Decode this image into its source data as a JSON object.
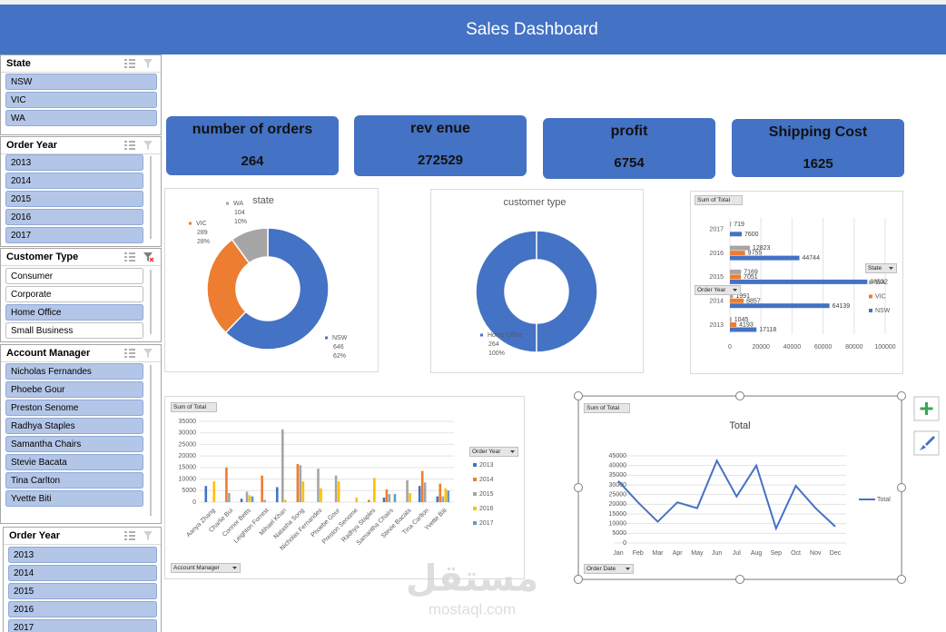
{
  "header": {
    "title": "Sales Dashboard"
  },
  "slicers": [
    {
      "title": "State",
      "items": [
        "NSW",
        "VIC",
        "WA"
      ]
    },
    {
      "title": "Order Year",
      "items": [
        "2013",
        "2014",
        "2015",
        "2016",
        "2017"
      ]
    },
    {
      "title": "Customer Type",
      "items": [
        "Consumer",
        "Corporate",
        "Home Office",
        "Small Business"
      ],
      "selected": [
        "Home Office"
      ]
    },
    {
      "title": "Account Manager",
      "items": [
        "Nicholas Fernandes",
        "Phoebe Gour",
        "Preston Senome",
        "Radhya Staples",
        "Samantha Chairs",
        "Stevie Bacata",
        "Tina Carlton",
        "Yvette Biti"
      ]
    },
    {
      "title": "Order Year",
      "items": [
        "2013",
        "2014",
        "2015",
        "2016",
        "2017"
      ]
    }
  ],
  "kpis": [
    {
      "label": "number of orders",
      "value": 264
    },
    {
      "label": "rev enue",
      "value": 272529
    },
    {
      "label": "profit",
      "value": 6754
    },
    {
      "label": "Shipping Cost",
      "value": 1625
    }
  ],
  "chart_data": [
    {
      "type": "donut",
      "title": "state",
      "categories": [
        "NSW",
        "VIC",
        "WA"
      ],
      "values": [
        646,
        289,
        104
      ],
      "percents": [
        {
          "value": 62,
          "label": "62%"
        },
        {
          "value": 28,
          "label": "28%"
        },
        {
          "value": 10,
          "label": "10%"
        }
      ],
      "colors": [
        "#4472c4",
        "#ed7d31",
        "#a5a5a5"
      ]
    },
    {
      "type": "donut",
      "title": "customer type",
      "categories": [
        "Home Office"
      ],
      "values": [
        264
      ],
      "percents": [
        {
          "value": 100,
          "label": "100%"
        }
      ],
      "colors": [
        "#4472c4"
      ]
    },
    {
      "type": "hbar",
      "value_field": "Sum of Total",
      "category_field": "Order Year",
      "legend_title": "State",
      "categories": [
        "2013",
        "2014",
        "2015",
        "2016",
        "2017"
      ],
      "series": [
        {
          "name": "NSW",
          "color": "#4472c4",
          "values": [
            17118,
            64139,
            88532,
            44744,
            7600
          ]
        },
        {
          "name": "VIC",
          "color": "#ed7d31",
          "values": [
            4193,
            8857,
            7051,
            9755,
            null
          ]
        },
        {
          "name": "WA",
          "color": "#a5a5a5",
          "values": [
            1045,
            1991,
            7169,
            12823,
            719
          ]
        }
      ],
      "xlim": [
        0,
        100000
      ],
      "xticks": [
        0,
        20000,
        40000,
        60000,
        80000,
        100000
      ],
      "grid": true
    },
    {
      "type": "column",
      "value_field": "Sum of Total",
      "category_field": "Account Manager",
      "legend_title": "Order Year",
      "categories": [
        "Aanya Zhang",
        "Charlie Bui",
        "Connor Betts",
        "Leighton Forrest",
        "Mihael Khan",
        "Natasha Song",
        "Nicholas Fernandes",
        "Phoebe Gour",
        "Preston Senome",
        "Radhya Staples",
        "Samantha Chairs",
        "Stevie Bacata",
        "Tina Carlton",
        "Yvette Biti"
      ],
      "series": [
        {
          "name": "2013",
          "color": "#4472c4",
          "values": [
            7000,
            null,
            1500,
            null,
            6500,
            null,
            null,
            null,
            null,
            null,
            2000,
            null,
            7000,
            2500
          ]
        },
        {
          "name": "2014",
          "color": "#ed7d31",
          "values": [
            null,
            15000,
            null,
            11500,
            null,
            16500,
            null,
            null,
            null,
            1000,
            5500,
            null,
            13500,
            8000
          ]
        },
        {
          "name": "2015",
          "color": "#a5a5a5",
          "values": [
            null,
            4000,
            4500,
            1000,
            31500,
            16000,
            14500,
            11500,
            null,
            null,
            3500,
            9500,
            8500,
            2500
          ]
        },
        {
          "name": "2016",
          "color": "#ffc000",
          "values": [
            9000,
            null,
            3000,
            null,
            1000,
            9000,
            6000,
            9000,
            2000,
            10500,
            null,
            4000,
            null,
            6000
          ]
        },
        {
          "name": "2017",
          "color": "#5b9bd5",
          "values": [
            null,
            null,
            2500,
            null,
            null,
            null,
            null,
            null,
            null,
            null,
            3500,
            null,
            null,
            5000
          ]
        }
      ],
      "ylim": [
        0,
        35000
      ],
      "yticks": [
        0,
        5000,
        10000,
        15000,
        20000,
        25000,
        30000,
        35000
      ],
      "grid": true
    },
    {
      "type": "line",
      "title": "Total",
      "value_field": "Sum of Total",
      "category_field": "Order Date",
      "categories": [
        "Jan",
        "Feb",
        "Mar",
        "Apr",
        "May",
        "Jun",
        "Jul",
        "Aug",
        "Sep",
        "Oct",
        "Nov",
        "Dec"
      ],
      "series": [
        {
          "name": "Total",
          "color": "#4472c4",
          "values": [
            32000,
            21000,
            11000,
            21000,
            18000,
            42500,
            24000,
            40000,
            7500,
            29500,
            18000,
            8500
          ]
        }
      ],
      "ylim": [
        0,
        45000
      ],
      "yticks": [
        0,
        5000,
        10000,
        15000,
        20000,
        25000,
        30000,
        35000,
        40000,
        45000
      ],
      "grid": true
    }
  ],
  "watermark": {
    "arabic": "مستقل",
    "latin": "mostaql.com"
  }
}
